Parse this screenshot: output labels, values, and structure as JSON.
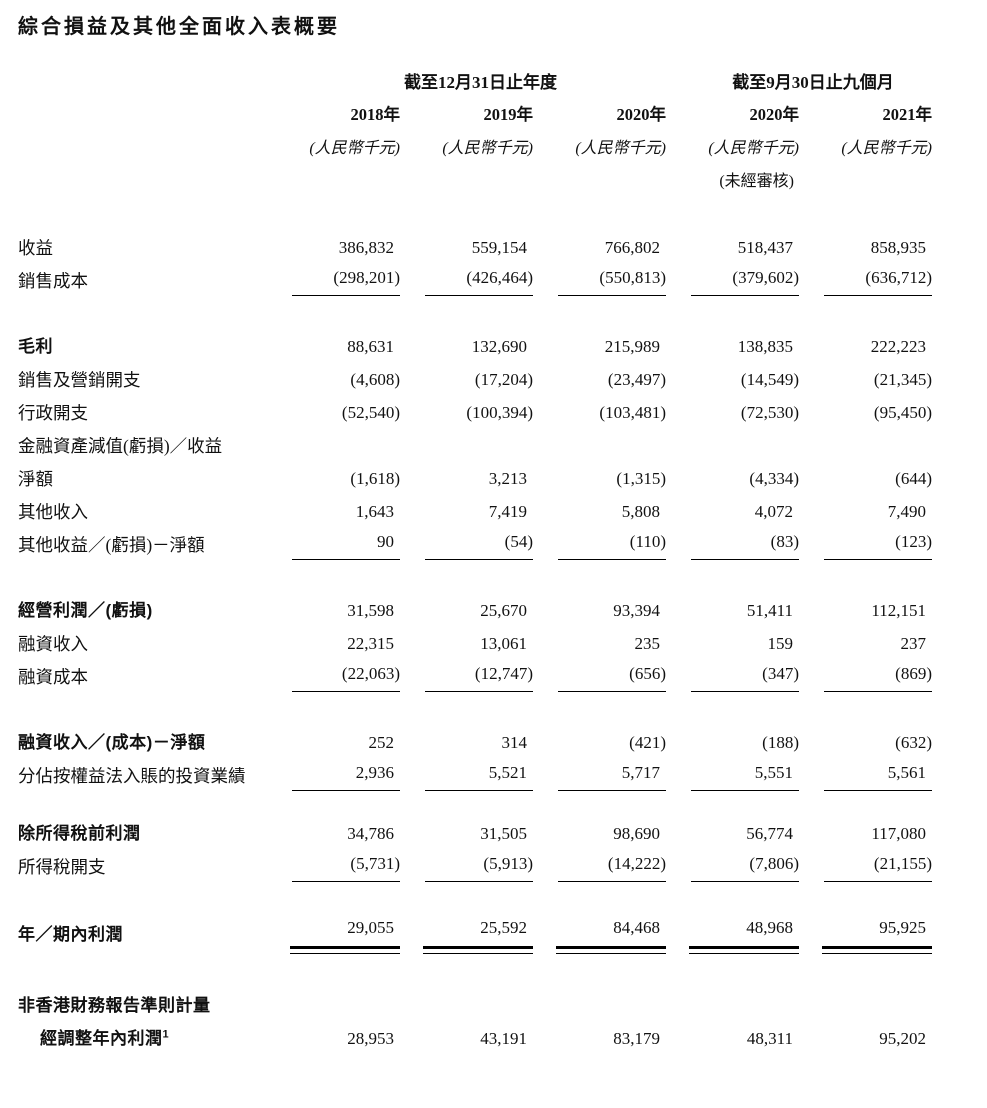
{
  "title": "綜合損益及其他全面收入表概要",
  "table": {
    "column_groups": [
      {
        "label": "截至12月31日止年度",
        "span": 3
      },
      {
        "label": "截至9月30日止九個月",
        "span": 2
      }
    ],
    "years": [
      "2018年",
      "2019年",
      "2020年",
      "2020年",
      "2021年"
    ],
    "units": [
      "(人民幣千元)",
      "(人民幣千元)",
      "(人民幣千元)",
      "(人民幣千元)",
      "(人民幣千元)"
    ],
    "unaudited_note": "(未經審核)",
    "unaudited_col": 4,
    "rows": [
      {
        "label": "收益",
        "values": [
          "386,832",
          "559,154",
          "766,802",
          "518,437",
          "858,935"
        ]
      },
      {
        "label": "銷售成本",
        "values": [
          "(298,201)",
          "(426,464)",
          "(550,813)",
          "(379,602)",
          "(636,712)"
        ],
        "rule": "single"
      },
      {
        "spacer": 33
      },
      {
        "label": "毛利",
        "bold": true,
        "values": [
          "88,631",
          "132,690",
          "215,989",
          "138,835",
          "222,223"
        ]
      },
      {
        "label": "銷售及營銷開支",
        "values": [
          "(4,608)",
          "(17,204)",
          "(23,497)",
          "(14,549)",
          "(21,345)"
        ]
      },
      {
        "label": "行政開支",
        "values": [
          "(52,540)",
          "(100,394)",
          "(103,481)",
          "(72,530)",
          "(95,450)"
        ]
      },
      {
        "label": "金融資產減值(虧損)／收益",
        "values": [
          "",
          "",
          "",
          "",
          ""
        ]
      },
      {
        "label": "淨額",
        "values": [
          "(1,618)",
          "3,213",
          "(1,315)",
          "(4,334)",
          "(644)"
        ]
      },
      {
        "label": "其他收入",
        "values": [
          "1,643",
          "7,419",
          "5,808",
          "4,072",
          "7,490"
        ]
      },
      {
        "label": "其他收益／(虧損)－淨額",
        "values": [
          "90",
          "(54)",
          "(110)",
          "(83)",
          "(123)"
        ],
        "rule": "single"
      },
      {
        "spacer": 33
      },
      {
        "label": "經營利潤／(虧損)",
        "bold": true,
        "values": [
          "31,598",
          "25,670",
          "93,394",
          "51,411",
          "112,151"
        ]
      },
      {
        "label": "融資收入",
        "values": [
          "22,315",
          "13,061",
          "235",
          "159",
          "237"
        ]
      },
      {
        "label": "融資成本",
        "values": [
          "(22,063)",
          "(12,747)",
          "(656)",
          "(347)",
          "(869)"
        ],
        "rule": "single"
      },
      {
        "spacer": 33
      },
      {
        "label": "融資收入／(成本)－淨額",
        "bold": true,
        "values": [
          "252",
          "314",
          "(421)",
          "(188)",
          "(632)"
        ]
      },
      {
        "label": "分佔按權益法入賬的投資業績",
        "values": [
          "2,936",
          "5,521",
          "5,717",
          "5,551",
          "5,561"
        ],
        "rule": "single"
      },
      {
        "spacer": 25
      },
      {
        "label": "除所得稅前利潤",
        "bold": true,
        "values": [
          "34,786",
          "31,505",
          "98,690",
          "56,774",
          "117,080"
        ]
      },
      {
        "label": "所得稅開支",
        "values": [
          "(5,731)",
          "(5,913)",
          "(14,222)",
          "(7,806)",
          "(21,155)"
        ],
        "rule": "single"
      },
      {
        "spacer": 33
      },
      {
        "label": "年／期內利潤",
        "bold": true,
        "values": [
          "29,055",
          "25,592",
          "84,468",
          "48,968",
          "95,925"
        ],
        "rule": "double"
      },
      {
        "spacer": 36
      },
      {
        "label": "非香港財務報告準則計量",
        "bold": true,
        "values": [
          "",
          "",
          "",
          "",
          ""
        ]
      },
      {
        "label": "經調整年內利潤",
        "sup": "1",
        "bold": true,
        "indent": true,
        "values": [
          "28,953",
          "43,191",
          "83,179",
          "48,311",
          "95,202"
        ]
      }
    ]
  }
}
